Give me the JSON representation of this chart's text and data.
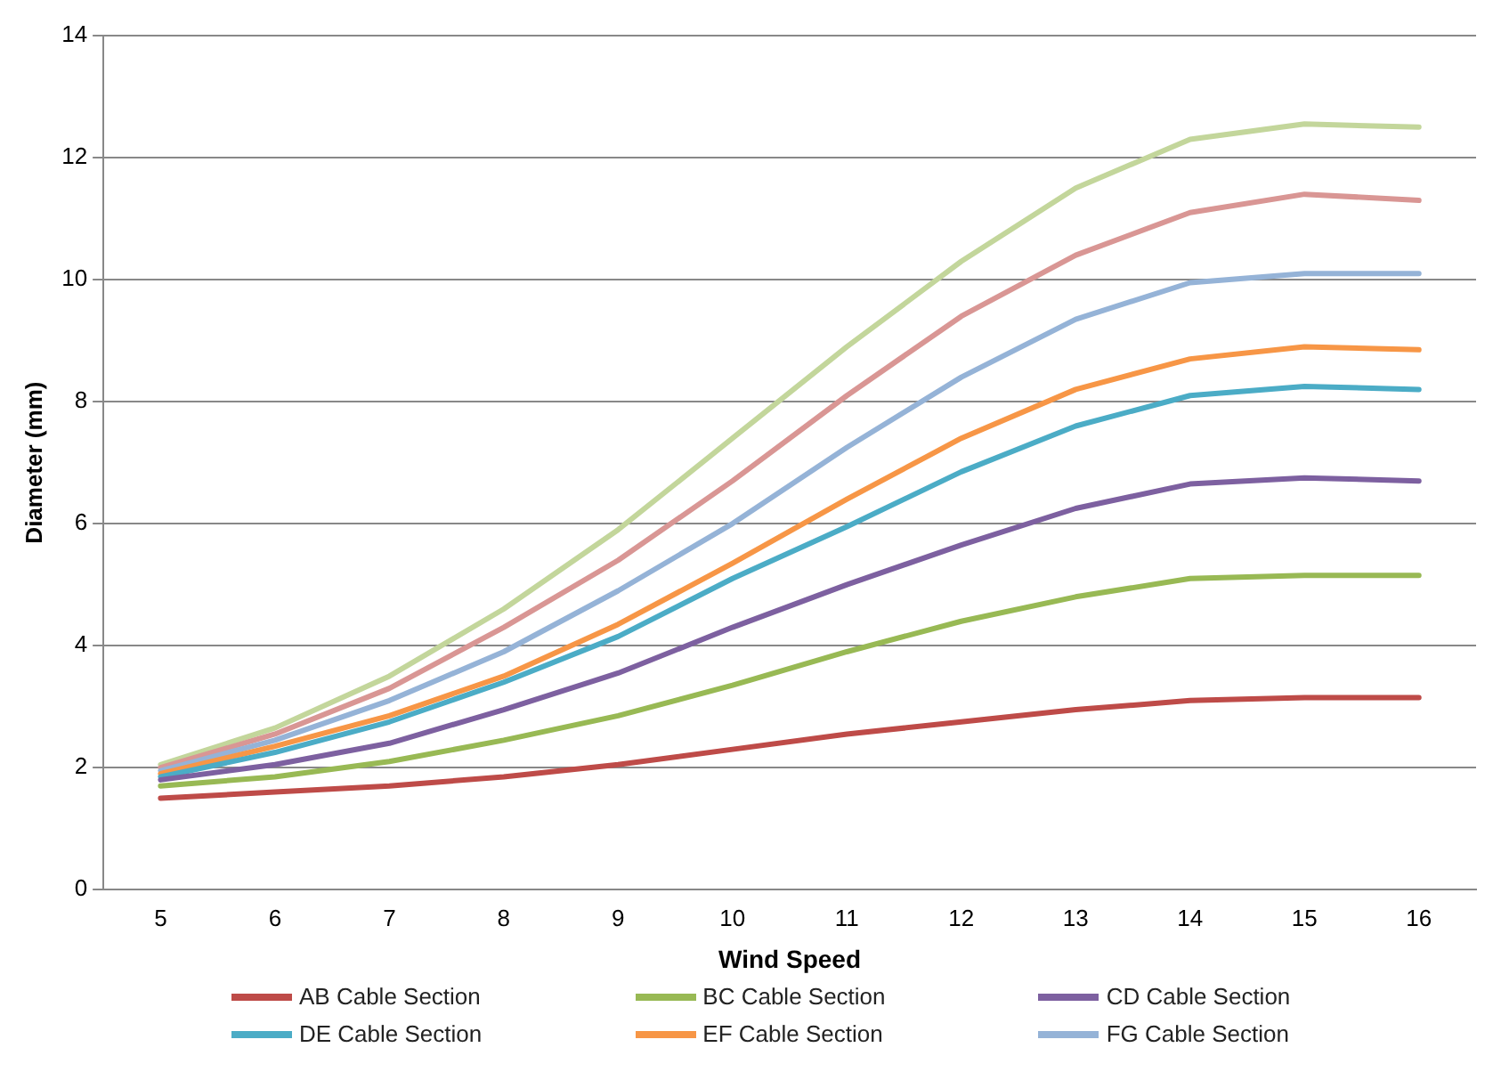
{
  "chart_data": {
    "type": "line",
    "xlabel": "Wind Speed",
    "ylabel": "Diameter (mm)",
    "categories": [
      "5",
      "6",
      "7",
      "8",
      "9",
      "10",
      "11",
      "12",
      "13",
      "14",
      "15",
      "16"
    ],
    "ylim": [
      0,
      14
    ],
    "yticks": [
      0,
      2,
      4,
      6,
      8,
      10,
      12,
      14
    ],
    "grid": "y",
    "legend": "bottom",
    "marker": "none",
    "line_style": "solid",
    "series": [
      {
        "name": "AB Cable Section",
        "color": "#be4b48",
        "values": [
          1.5,
          1.6,
          1.7,
          1.85,
          2.05,
          2.3,
          2.55,
          2.75,
          2.95,
          3.1,
          3.15,
          3.15
        ]
      },
      {
        "name": "BC Cable Section",
        "color": "#98b954",
        "values": [
          1.7,
          1.85,
          2.1,
          2.45,
          2.85,
          3.35,
          3.9,
          4.4,
          4.8,
          5.1,
          5.15,
          5.15
        ]
      },
      {
        "name": "CD Cable Section",
        "color": "#7d60a0",
        "values": [
          1.8,
          2.05,
          2.4,
          2.95,
          3.55,
          4.3,
          5.0,
          5.65,
          6.25,
          6.65,
          6.75,
          6.7
        ]
      },
      {
        "name": "DE Cable Section",
        "color": "#4bacc6",
        "values": [
          1.85,
          2.25,
          2.75,
          3.4,
          4.15,
          5.1,
          5.95,
          6.85,
          7.6,
          8.1,
          8.25,
          8.2
        ]
      },
      {
        "name": "EF Cable Section",
        "color": "#f79646",
        "values": [
          1.9,
          2.35,
          2.85,
          3.5,
          4.35,
          5.35,
          6.4,
          7.4,
          8.2,
          8.7,
          8.9,
          8.85
        ]
      },
      {
        "name": "FG Cable Section",
        "color": "#95b3d7",
        "values": [
          1.95,
          2.45,
          3.1,
          3.9,
          4.9,
          6.0,
          7.25,
          8.4,
          9.35,
          9.95,
          10.1,
          10.1
        ]
      },
      {
        "color": "#d99694",
        "values": [
          2.0,
          2.55,
          3.3,
          4.3,
          5.4,
          6.7,
          8.1,
          9.4,
          10.4,
          11.1,
          11.4,
          11.3
        ]
      },
      {
        "color": "#c3d69b",
        "values": [
          2.05,
          2.65,
          3.5,
          4.6,
          5.9,
          7.4,
          8.9,
          10.3,
          11.5,
          12.3,
          12.55,
          12.5
        ]
      }
    ]
  }
}
